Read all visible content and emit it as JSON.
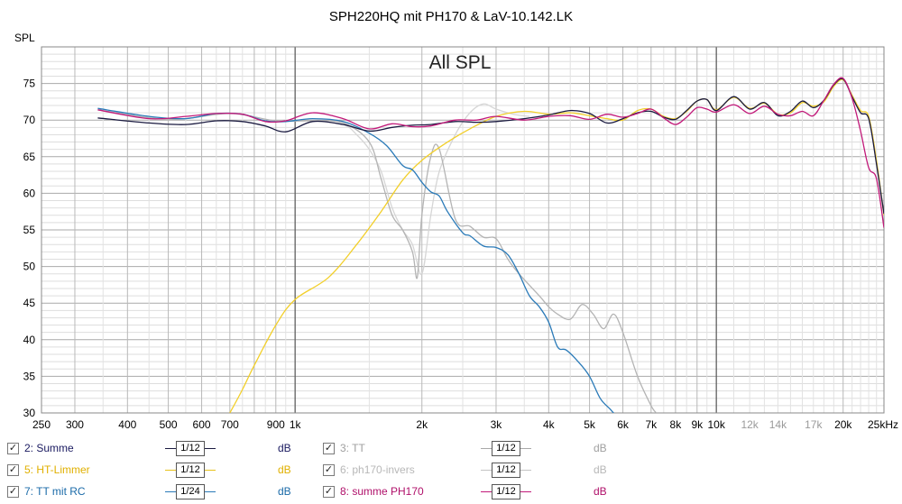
{
  "chart_data": {
    "type": "line",
    "title": "SPH220HQ mit PH170 & LaV-10.142.LK",
    "annotation": "All SPL",
    "ylabel": "SPL",
    "xlabel": "",
    "xscale": "log",
    "xlim": [
      250,
      25000
    ],
    "ylim": [
      30,
      80
    ],
    "yticks": [
      30,
      35,
      40,
      45,
      50,
      55,
      60,
      65,
      70,
      75
    ],
    "yticklabels": [
      "30",
      "35",
      "40",
      "45",
      "50",
      "55",
      "60",
      "65",
      "70",
      "75"
    ],
    "xticks": [
      250,
      300,
      400,
      500,
      600,
      700,
      900,
      1000,
      2000,
      3000,
      4000,
      5000,
      6000,
      7000,
      8000,
      9000,
      10000,
      12000,
      14000,
      17000,
      20000,
      25000
    ],
    "xticklabels": [
      "250",
      "300",
      "400",
      "500",
      "600",
      "700",
      "900",
      "1k",
      "2k",
      "3k",
      "4k",
      "5k",
      "6k",
      "7k",
      "8k",
      "9k",
      "10k",
      "12k",
      "14k",
      "17k",
      "20k",
      "25kHz"
    ],
    "grid": true,
    "series": [
      {
        "name": "2: Summe",
        "color": "#1a1a40",
        "x": [
          340,
          450,
          550,
          650,
          750,
          850,
          950,
          1100,
          1300,
          1500,
          1700,
          1900,
          2100,
          2400,
          2700,
          3000,
          3500,
          4000,
          4500,
          5000,
          5500,
          6000,
          6500,
          7000,
          7500,
          8000,
          8500,
          9000,
          9500,
          10000,
          11000,
          12000,
          13000,
          14000,
          15000,
          16000,
          17000,
          18000,
          19000,
          20000,
          21000,
          22000,
          23000,
          24000,
          25000
        ],
        "y": [
          70.3,
          69.6,
          69.4,
          69.9,
          69.8,
          69.2,
          68.4,
          69.8,
          69.4,
          68.5,
          69.0,
          69.3,
          69.4,
          69.8,
          69.7,
          69.8,
          70.2,
          70.7,
          71.3,
          70.9,
          69.6,
          70.2,
          71.0,
          71.2,
          70.4,
          70.1,
          71.3,
          72.6,
          72.8,
          71.3,
          73.2,
          71.5,
          72.4,
          70.6,
          71.2,
          72.6,
          71.7,
          72.7,
          74.8,
          75.6,
          73.2,
          71.0,
          70.2,
          64.0,
          57.2
        ]
      },
      {
        "name": "5: HT-Limmer",
        "color": "#f2cf2a",
        "x": [
          700,
          750,
          800,
          900,
          1000,
          1200,
          1400,
          1600,
          1800,
          2000,
          2300,
          2600,
          3000,
          3500,
          4000,
          4500,
          5000,
          5500,
          6000,
          6500,
          7000,
          7500,
          8000,
          8500,
          9000,
          9500,
          10000,
          11000,
          12000,
          13000,
          14000,
          15000,
          16000,
          17000,
          18000,
          19000,
          20000,
          21000,
          22000,
          23000,
          24000,
          25000
        ],
        "y": [
          30.0,
          33.2,
          36.5,
          42.0,
          45.5,
          48.5,
          53.0,
          57.5,
          61.8,
          64.5,
          67.0,
          68.8,
          70.5,
          71.2,
          70.8,
          71.0,
          70.6,
          70.2,
          70.0,
          71.3,
          71.5,
          70.5,
          70.2,
          71.2,
          72.6,
          72.8,
          71.4,
          73.1,
          71.6,
          72.3,
          70.8,
          71.0,
          72.4,
          71.9,
          72.5,
          74.6,
          75.5,
          73.4,
          71.3,
          70.5,
          64.5,
          57.0
        ]
      },
      {
        "name": "7: TT mit RC",
        "color": "#2a7ab8",
        "x": [
          340,
          450,
          550,
          650,
          750,
          850,
          950,
          1100,
          1300,
          1500,
          1650,
          1800,
          1900,
          2000,
          2100,
          2200,
          2300,
          2500,
          2600,
          2800,
          3000,
          3200,
          3400,
          3600,
          3800,
          4000,
          4200,
          4400,
          4700,
          5000,
          5300,
          5600,
          5800
        ],
        "y": [
          71.6,
          70.5,
          70.2,
          70.9,
          70.8,
          69.9,
          69.8,
          70.2,
          69.8,
          68.2,
          66.5,
          63.8,
          63.2,
          61.5,
          60.2,
          59.6,
          57.5,
          54.6,
          54.2,
          52.8,
          52.6,
          51.6,
          49.0,
          46.0,
          44.5,
          42.4,
          39.0,
          38.6,
          37.0,
          35.0,
          32.0,
          30.5,
          29.5
        ]
      },
      {
        "name": "3: TT",
        "color": "#b4b4b4",
        "x": [
          340,
          500,
          700,
          900,
          1100,
          1300,
          1500,
          1600,
          1700,
          1800,
          1900,
          1950,
          2000,
          2100,
          2200,
          2400,
          2600,
          2800,
          3000,
          3200,
          3400,
          3800,
          4000,
          4200,
          4500,
          4800,
          5100,
          5400,
          5700,
          6000,
          6500,
          7000,
          7200
        ],
        "y": [
          71.4,
          70.1,
          70.9,
          69.9,
          69.9,
          69.6,
          67.0,
          62.0,
          57.0,
          55.0,
          52.0,
          48.5,
          57.0,
          65.0,
          66.0,
          56.5,
          55.5,
          54.0,
          53.8,
          51.0,
          49.0,
          46.0,
          44.5,
          43.5,
          42.8,
          44.8,
          43.5,
          41.5,
          43.5,
          41.0,
          35.0,
          31.0,
          30.0
        ]
      },
      {
        "name": "6: ph170-invers",
        "color": "#d6d6d6",
        "x": [
          1100,
          1300,
          1400,
          1500,
          1600,
          1700,
          1800,
          1900,
          2000,
          2100,
          2200,
          2400,
          2600,
          2800,
          3000,
          3300,
          3600
        ],
        "y": [
          69.9,
          69.4,
          68.0,
          66.0,
          63.0,
          58.0,
          55.0,
          53.0,
          49.0,
          57.0,
          63.0,
          68.0,
          71.0,
          72.2,
          71.5,
          70.8,
          70.5
        ]
      },
      {
        "name": "8: summe PH170",
        "color": "#c21a7a",
        "x": [
          340,
          450,
          550,
          650,
          750,
          850,
          950,
          1100,
          1300,
          1500,
          1700,
          1900,
          2100,
          2400,
          2700,
          3000,
          3500,
          4000,
          4500,
          5000,
          5500,
          6000,
          6500,
          7000,
          7500,
          8000,
          8500,
          9000,
          9500,
          10000,
          11000,
          12000,
          13000,
          14000,
          15000,
          16000,
          17000,
          18000,
          19000,
          20000,
          21000,
          22000,
          23000,
          24000,
          25000
        ],
        "y": [
          71.4,
          70.2,
          70.5,
          70.9,
          70.8,
          69.8,
          69.9,
          71.0,
          70.2,
          68.8,
          69.5,
          69.1,
          69.2,
          70.0,
          70.0,
          70.5,
          70.0,
          70.5,
          70.6,
          70.1,
          70.8,
          70.4,
          70.9,
          71.5,
          70.3,
          69.4,
          70.4,
          71.7,
          71.5,
          71.1,
          72.1,
          70.9,
          71.9,
          70.8,
          70.6,
          71.2,
          70.6,
          72.7,
          74.9,
          75.7,
          73.0,
          68.5,
          63.5,
          62.0,
          55.3
        ]
      }
    ]
  },
  "legend": {
    "items": [
      {
        "label": "2: Summe",
        "smoothing": "1/12",
        "unit": "dB",
        "checked": "✓",
        "color": "#1a1a40"
      },
      {
        "label": "5: HT-Limmer",
        "smoothing": "1/12",
        "unit": "dB",
        "checked": "✓",
        "color": "#e7c21c"
      },
      {
        "label": "7: TT mit RC",
        "smoothing": "1/24",
        "unit": "dB",
        "checked": "✓",
        "color": "#2a7ab8"
      },
      {
        "label": "3: TT",
        "smoothing": "1/12",
        "unit": "dB",
        "checked": "✓",
        "color": "#a8a8a8"
      },
      {
        "label": "6: ph170-invers",
        "smoothing": "1/12",
        "unit": "dB",
        "checked": "✓",
        "color": "#c4c4c4"
      },
      {
        "label": "8: summe PH170",
        "smoothing": "1/12",
        "unit": "dB",
        "checked": "✓",
        "color": "#c21a7a"
      }
    ]
  }
}
